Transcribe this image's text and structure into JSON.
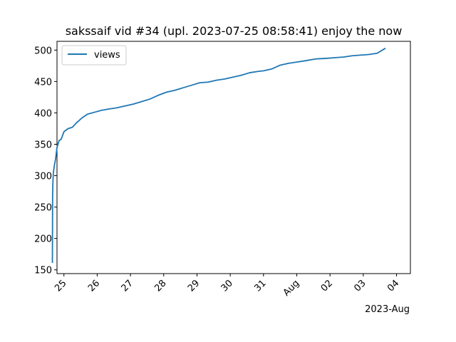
{
  "chart_data": {
    "type": "line",
    "title": "sakssaif vid #34 (upl. 2023-07-25 08:58:41) enjoy the now",
    "xlabel": "",
    "ylabel": "",
    "x_offset_label": "2023-Aug",
    "xlim": [
      "2023-07-24T19:00",
      "2023-08-04T10:00"
    ],
    "ylim": [
      144,
      514
    ],
    "x_ticks": [
      "2023-07-25",
      "2023-07-26",
      "2023-07-27",
      "2023-07-28",
      "2023-07-29",
      "2023-07-30",
      "2023-07-31",
      "2023-08-01",
      "2023-08-02",
      "2023-08-03",
      "2023-08-04"
    ],
    "x_tick_labels": [
      "25",
      "26",
      "27",
      "28",
      "29",
      "30",
      "31",
      "Aug",
      "02",
      "03",
      "04"
    ],
    "y_ticks": [
      150,
      200,
      250,
      300,
      350,
      400,
      450,
      500
    ],
    "y_tick_labels": [
      "150",
      "200",
      "250",
      "300",
      "350",
      "400",
      "450",
      "500"
    ],
    "grid": false,
    "legend_position": "upper-left",
    "series": [
      {
        "name": "views",
        "color": "#1f77b4",
        "x": [
          "2023-07-24T15:40",
          "2023-07-24T15:50",
          "2023-07-24T16:00",
          "2023-07-24T16:20",
          "2023-07-24T17:00",
          "2023-07-24T18:00",
          "2023-07-24T19:00",
          "2023-07-24T20:30",
          "2023-07-24T22:00",
          "2023-07-25T00:00",
          "2023-07-25T03:00",
          "2023-07-25T06:00",
          "2023-07-25T09:00",
          "2023-07-25T13:00",
          "2023-07-25T17:00",
          "2023-07-25T22:00",
          "2023-07-26T03:00",
          "2023-07-26T08:00",
          "2023-07-26T14:00",
          "2023-07-26T20:00",
          "2023-07-27T02:00",
          "2023-07-27T08:00",
          "2023-07-27T14:00",
          "2023-07-27T20:00",
          "2023-07-28T02:00",
          "2023-07-28T08:00",
          "2023-07-28T14:00",
          "2023-07-28T20:00",
          "2023-07-29T02:00",
          "2023-07-29T08:00",
          "2023-07-29T14:00",
          "2023-07-29T20:00",
          "2023-07-30T00:00",
          "2023-07-30T08:00",
          "2023-07-30T14:00",
          "2023-07-30T20:00",
          "2023-07-31T00:00",
          "2023-07-31T06:00",
          "2023-07-31T12:00",
          "2023-07-31T18:00",
          "2023-08-01T00:00",
          "2023-08-01T06:00",
          "2023-08-01T14:00",
          "2023-08-01T22:00",
          "2023-08-02T04:00",
          "2023-08-02T10:00",
          "2023-08-02T16:00",
          "2023-08-02T22:00",
          "2023-08-03T04:00",
          "2023-08-03T10:00",
          "2023-08-03T16:00"
        ],
        "y": [
          161,
          267,
          287,
          303,
          315,
          327,
          345,
          356,
          358,
          370,
          375,
          377,
          384,
          392,
          398,
          401,
          404,
          406,
          408,
          411,
          414,
          418,
          422,
          428,
          433,
          436,
          440,
          444,
          448,
          449,
          452,
          454,
          456,
          460,
          464,
          466,
          467,
          470,
          476,
          479,
          481,
          483,
          486,
          487,
          488,
          489,
          491,
          492,
          493,
          495,
          503
        ]
      }
    ]
  }
}
